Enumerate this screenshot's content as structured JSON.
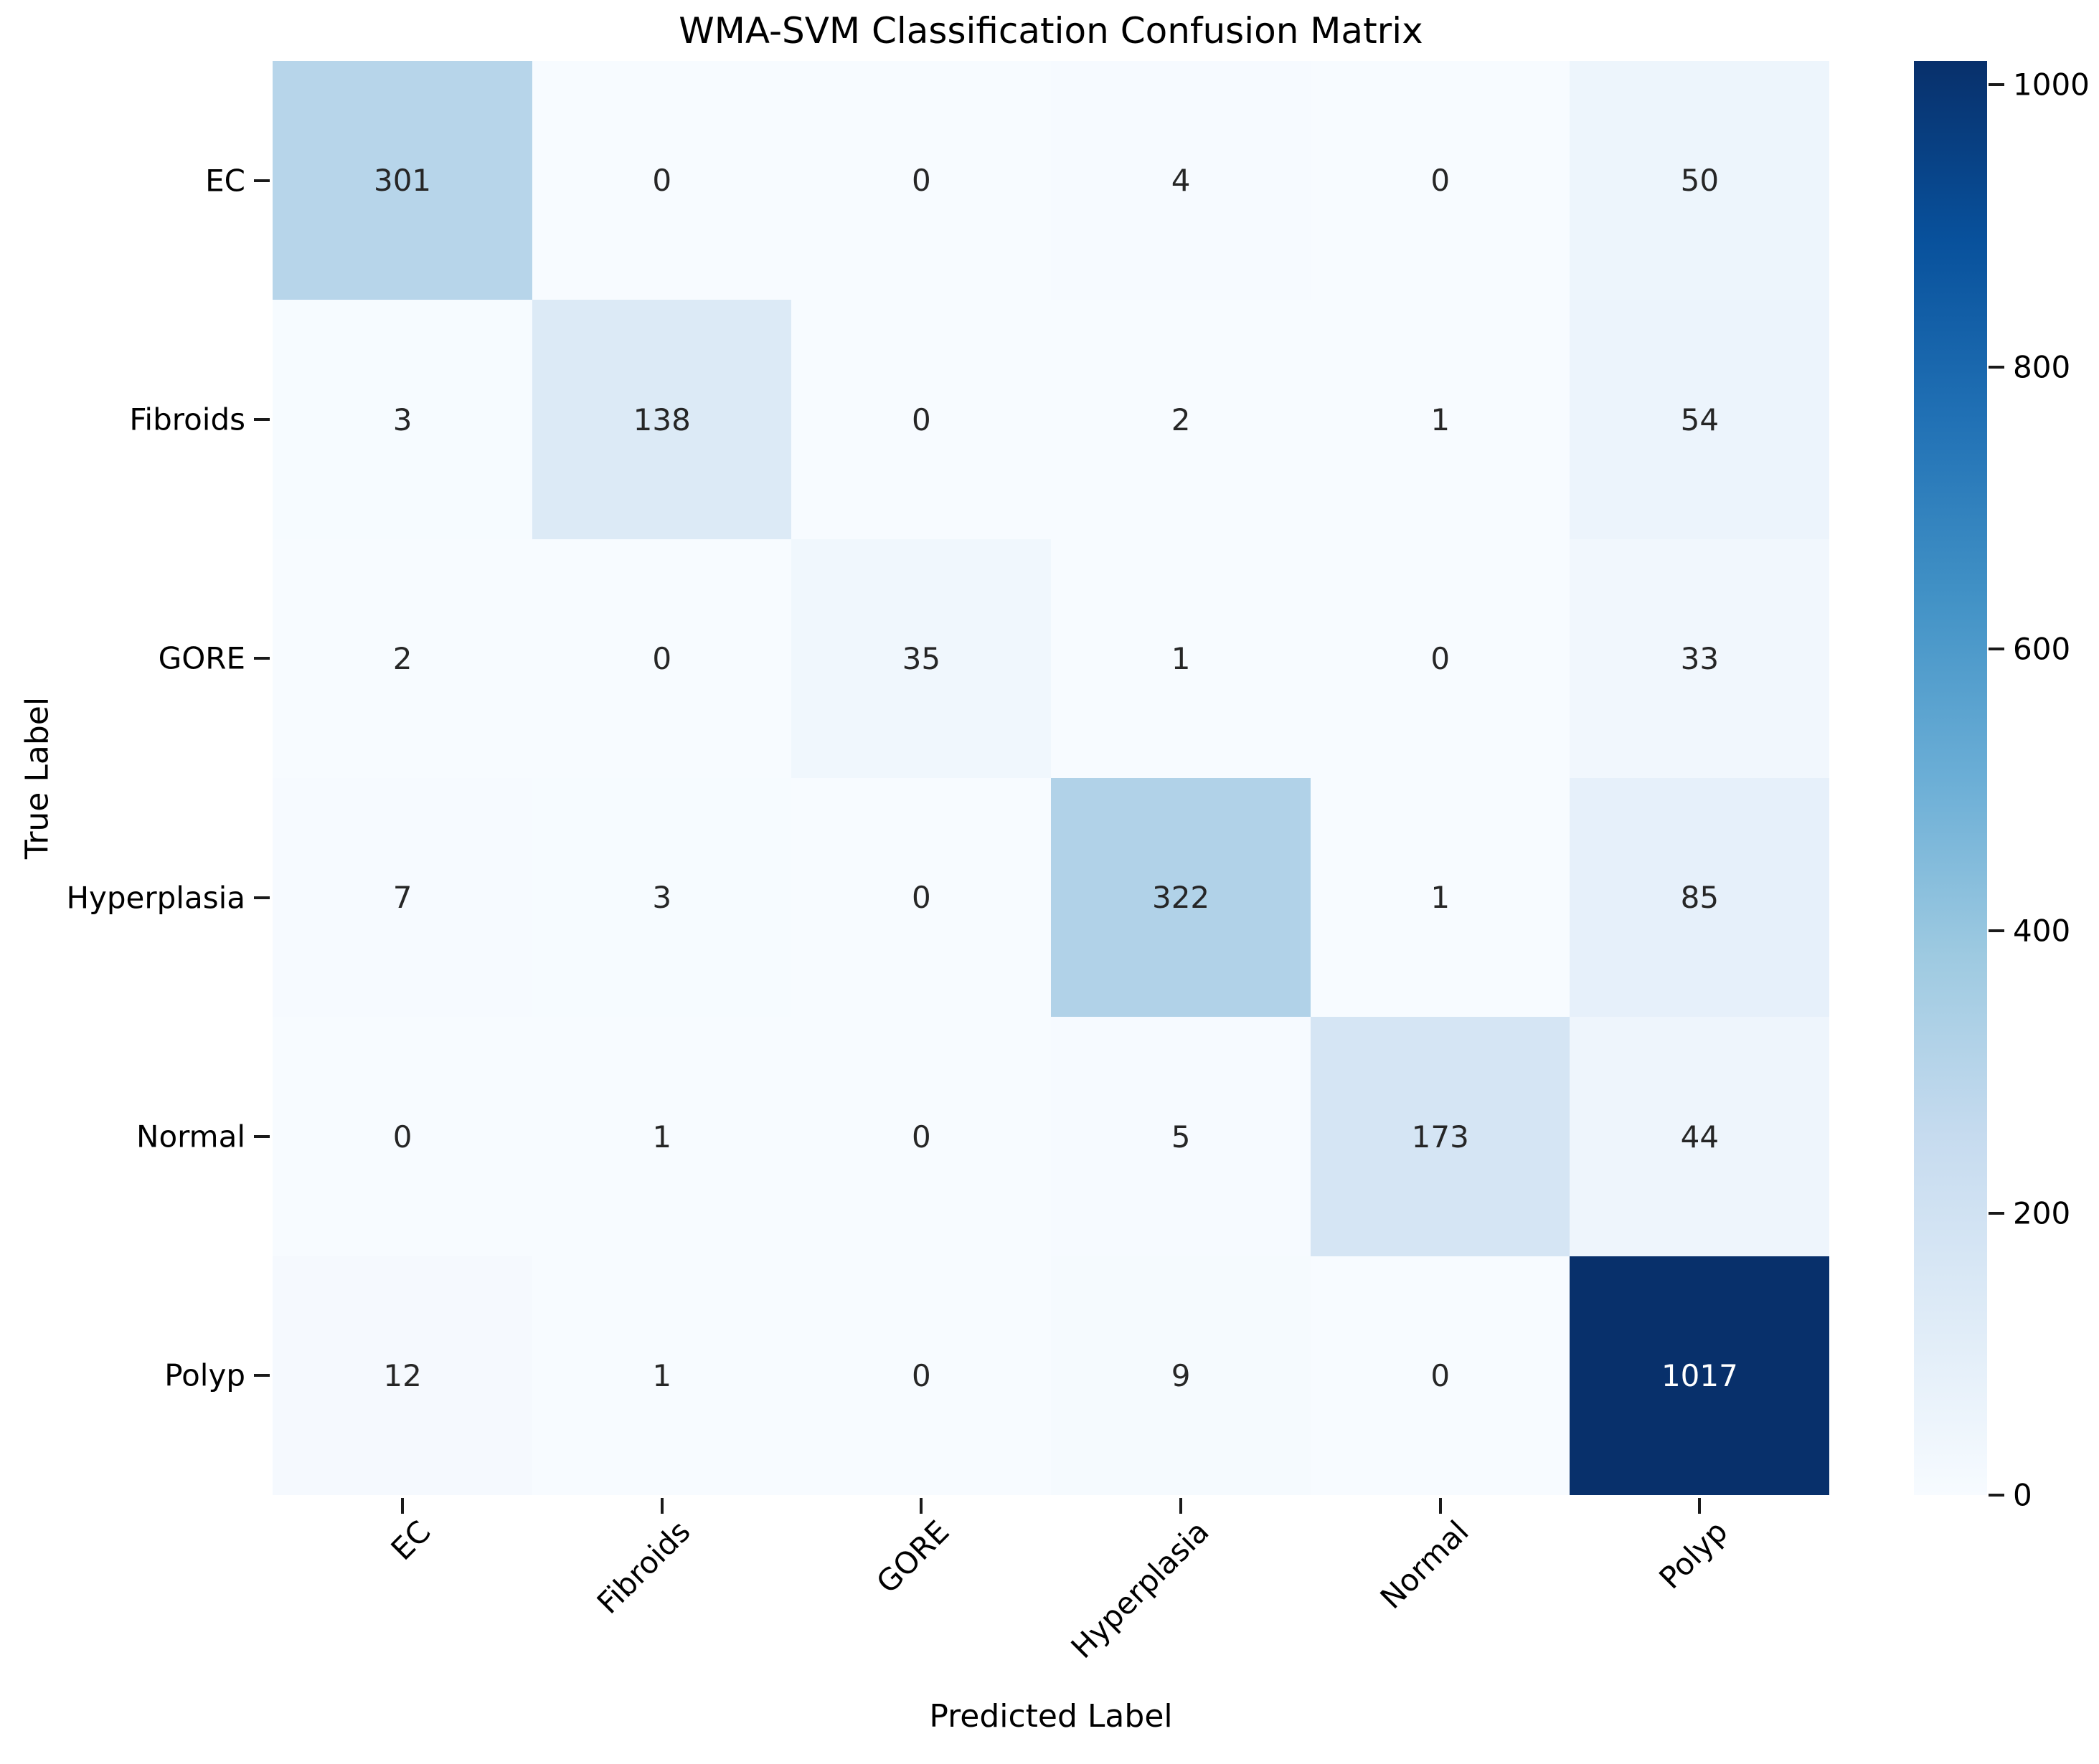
{
  "chart_data": {
    "type": "heatmap",
    "title": "WMA-SVM Classification Confusion Matrix",
    "xlabel": "Predicted Label",
    "ylabel": "True Label",
    "x_tick_labels": [
      "EC",
      "Fibroids",
      "GORE",
      "Hyperplasia",
      "Normal",
      "Polyp"
    ],
    "y_tick_labels": [
      "EC",
      "Fibroids",
      "GORE",
      "Hyperplasia",
      "Normal",
      "Polyp"
    ],
    "matrix": [
      [
        301,
        0,
        0,
        4,
        0,
        50
      ],
      [
        3,
        138,
        0,
        2,
        1,
        54
      ],
      [
        2,
        0,
        35,
        1,
        0,
        33
      ],
      [
        7,
        3,
        0,
        322,
        1,
        85
      ],
      [
        0,
        1,
        0,
        5,
        173,
        44
      ],
      [
        12,
        1,
        0,
        9,
        0,
        1017
      ]
    ],
    "vmin": 0,
    "vmax": 1017,
    "colormap": {
      "name": "Blues",
      "anchors": [
        "#f7fbff",
        "#deebf7",
        "#c6dbef",
        "#9ecae1",
        "#6baed6",
        "#4292c6",
        "#2171b5",
        "#08519c",
        "#08306b"
      ]
    },
    "colorbar_ticks": [
      0,
      200,
      400,
      600,
      800,
      1000
    ],
    "annotation_colors": {
      "dark": "#262626",
      "light": "#ffffff"
    },
    "grid": false,
    "legend_position": "right",
    "x_tick_rotation_deg": 45
  }
}
